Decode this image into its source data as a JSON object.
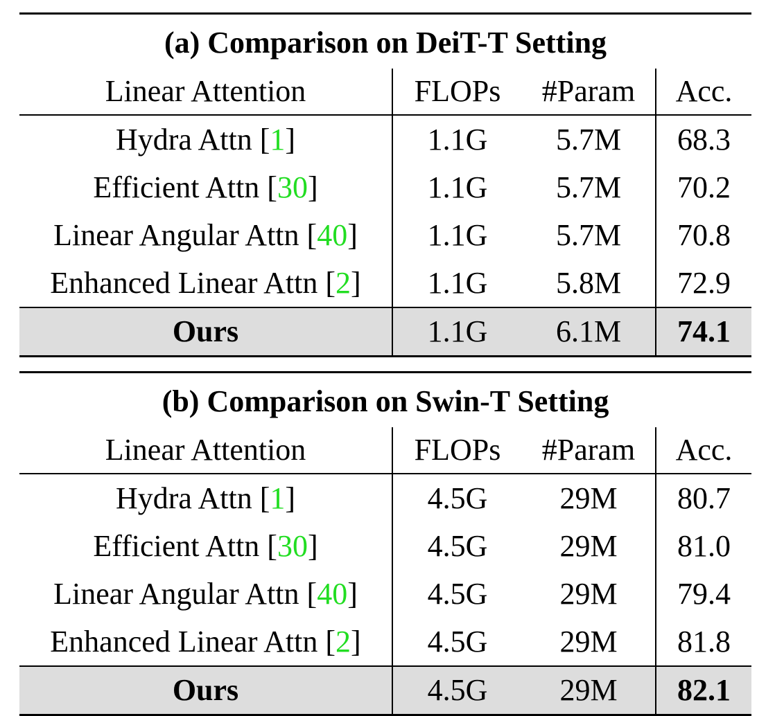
{
  "tables": [
    {
      "title": "(a) Comparison on DeiT-T Setting",
      "headers": [
        "Linear Attention",
        "FLOPs",
        "#Param",
        "Acc."
      ],
      "rows": [
        {
          "method": "Hydra Attn",
          "cite": "1",
          "flops": "1.1G",
          "params": "5.7M",
          "acc": "68.3"
        },
        {
          "method": "Efficient Attn",
          "cite": "30",
          "flops": "1.1G",
          "params": "5.7M",
          "acc": "70.2"
        },
        {
          "method": "Linear Angular Attn",
          "cite": "40",
          "flops": "1.1G",
          "params": "5.7M",
          "acc": "70.8"
        },
        {
          "method": "Enhanced Linear Attn",
          "cite": "2",
          "flops": "1.1G",
          "params": "5.8M",
          "acc": "72.9"
        }
      ],
      "ours": {
        "method": "Ours",
        "flops": "1.1G",
        "params": "6.1M",
        "acc": "74.1"
      }
    },
    {
      "title": "(b) Comparison on Swin-T Setting",
      "headers": [
        "Linear Attention",
        "FLOPs",
        "#Param",
        "Acc."
      ],
      "rows": [
        {
          "method": "Hydra Attn",
          "cite": "1",
          "flops": "4.5G",
          "params": "29M",
          "acc": "80.7"
        },
        {
          "method": "Efficient Attn",
          "cite": "30",
          "flops": "4.5G",
          "params": "29M",
          "acc": "81.0"
        },
        {
          "method": "Linear Angular Attn",
          "cite": "40",
          "flops": "4.5G",
          "params": "29M",
          "acc": "79.4"
        },
        {
          "method": "Enhanced Linear Attn",
          "cite": "2",
          "flops": "4.5G",
          "params": "29M",
          "acc": "81.8"
        }
      ],
      "ours": {
        "method": "Ours",
        "flops": "4.5G",
        "params": "29M",
        "acc": "82.1"
      }
    }
  ],
  "colors": {
    "citation": "#22dd22",
    "highlight_row": "#dddddd"
  }
}
